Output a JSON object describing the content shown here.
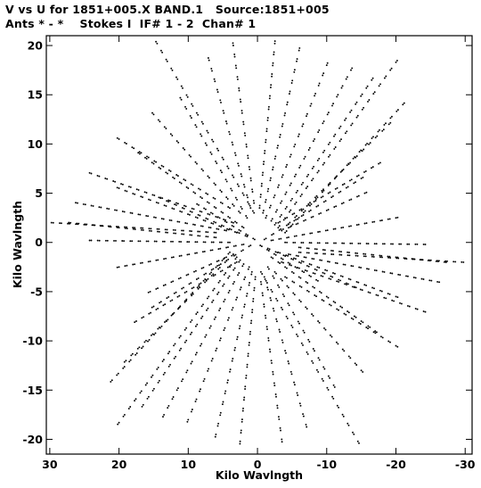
{
  "header": {
    "line1": "V vs U for 1851+005.X BAND.1   Source:1851+005",
    "line2": "Ants * - *    Stokes I  IF# 1 - 2  Chan# 1"
  },
  "chart_data": {
    "type": "scatter",
    "title": "V vs U for 1851+005.X BAND.1   Source:1851+005",
    "subtitle": "Ants * - *    Stokes I  IF# 1 - 2  Chan# 1",
    "xlabel": "Kilo Wavlngth",
    "ylabel": "Kilo Wavlngth",
    "xlim": [
      30.5,
      -31
    ],
    "ylim": [
      -21.5,
      21
    ],
    "x_ticks": [
      30,
      20,
      10,
      0,
      -10,
      -20,
      -30
    ],
    "y_ticks": [
      20,
      15,
      10,
      5,
      0,
      -5,
      -10,
      -15,
      -20
    ],
    "x_tick_labels": [
      "30",
      "20",
      "10",
      "0",
      "-10",
      "-20",
      "-30"
    ],
    "y_tick_labels": [
      "20",
      "15",
      "10",
      "5",
      "0",
      "-5",
      "-10",
      "-15",
      "-20"
    ],
    "grid": false,
    "legend": "none",
    "note": "uv-coverage tracks, point-symmetric about the origin",
    "tracks": [
      {
        "start": [
          0.4,
          0.3
        ],
        "end": [
          8.5,
          3.8
        ]
      },
      {
        "start": [
          1.5,
          0.6
        ],
        "end": [
          14.0,
          4.5
        ]
      },
      {
        "start": [
          3.0,
          1.0
        ],
        "end": [
          20.0,
          5.5
        ]
      },
      {
        "start": [
          4.5,
          1.2
        ],
        "end": [
          26.0,
          4.0
        ]
      },
      {
        "start": [
          6.0,
          1.0
        ],
        "end": [
          29.5,
          2.0
        ]
      },
      {
        "start": [
          2.0,
          1.5
        ],
        "end": [
          17.0,
          9.0
        ]
      },
      {
        "start": [
          3.5,
          2.0
        ],
        "end": [
          24.0,
          7.0
        ]
      },
      {
        "start": [
          1.5,
          2.5
        ],
        "end": [
          11.0,
          14.5
        ]
      },
      {
        "start": [
          2.5,
          3.0
        ],
        "end": [
          15.0,
          13.0
        ]
      },
      {
        "start": [
          1.0,
          3.5
        ],
        "end": [
          7.0,
          18.5
        ]
      },
      {
        "start": [
          0.5,
          4.0
        ],
        "end": [
          3.5,
          20.0
        ]
      },
      {
        "start": [
          0.5,
          3.0
        ],
        "end": [
          14.5,
          20.2
        ]
      },
      {
        "start": [
          4.0,
          3.5
        ],
        "end": [
          20.0,
          10.5
        ]
      },
      {
        "start": [
          -0.3,
          3.5
        ],
        "end": [
          -2.5,
          20.2
        ]
      },
      {
        "start": [
          -0.8,
          3.0
        ],
        "end": [
          -6.0,
          19.5
        ]
      },
      {
        "start": [
          -1.2,
          2.5
        ],
        "end": [
          -10.0,
          18.0
        ]
      },
      {
        "start": [
          -2.0,
          2.2
        ],
        "end": [
          -13.5,
          17.5
        ]
      },
      {
        "start": [
          -2.5,
          1.8
        ],
        "end": [
          -16.5,
          16.5
        ]
      },
      {
        "start": [
          -3.0,
          1.5
        ],
        "end": [
          -20.0,
          18.3
        ]
      },
      {
        "start": [
          -3.5,
          1.2
        ],
        "end": [
          -19.0,
          12.0
        ]
      },
      {
        "start": [
          -4.0,
          1.0
        ],
        "end": [
          -21.0,
          14.0
        ]
      },
      {
        "start": [
          -3.0,
          2.0
        ],
        "end": [
          -17.5,
          8.0
        ]
      },
      {
        "start": [
          -4.5,
          1.5
        ],
        "end": [
          -15.5,
          5.0
        ]
      },
      {
        "start": [
          -1.0,
          0.3
        ],
        "end": [
          -15.0,
          6.5
        ]
      },
      {
        "start": [
          -2.0,
          0.2
        ],
        "end": [
          -20.0,
          2.5
        ]
      },
      {
        "start": [
          -4.0,
          0.0
        ],
        "end": [
          -24.0,
          -0.2
        ]
      },
      {
        "start": [
          -6.0,
          -0.5
        ],
        "end": [
          -27.0,
          -2.0
        ]
      }
    ]
  }
}
